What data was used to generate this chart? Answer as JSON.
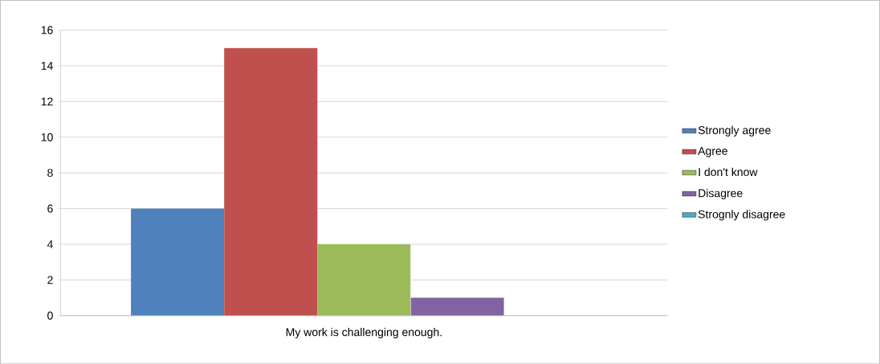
{
  "chart_data": {
    "type": "bar",
    "categories": [
      "My work is challenging enough."
    ],
    "series": [
      {
        "name": "Strongly agree",
        "color": "#4f81bd",
        "values": [
          6
        ]
      },
      {
        "name": "Agree",
        "color": "#c0504d",
        "values": [
          15
        ]
      },
      {
        "name": "I don't know",
        "color": "#9bbb59",
        "values": [
          4
        ]
      },
      {
        "name": "Disagree",
        "color": "#8064a2",
        "values": [
          1
        ]
      },
      {
        "name": "Strognly disagree",
        "color": "#4bacc6",
        "values": [
          0
        ]
      }
    ],
    "ylim": [
      0,
      16
    ],
    "yticks": [
      0,
      2,
      4,
      6,
      8,
      10,
      12,
      14,
      16
    ],
    "grid": "y",
    "legend": "right"
  }
}
